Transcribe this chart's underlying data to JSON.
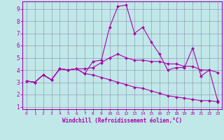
{
  "xlabel": "Windchill (Refroidissement éolien,°C)",
  "xlim": [
    -0.5,
    23.5
  ],
  "ylim": [
    0.8,
    9.6
  ],
  "xticks": [
    0,
    1,
    2,
    3,
    4,
    5,
    6,
    7,
    8,
    9,
    10,
    11,
    12,
    13,
    14,
    15,
    16,
    17,
    18,
    19,
    20,
    21,
    22,
    23
  ],
  "yticks": [
    1,
    2,
    3,
    4,
    5,
    6,
    7,
    8,
    9
  ],
  "bg_color": "#c0e8e8",
  "grid_color": "#9999bb",
  "line_color": "#aa00aa",
  "lines": [
    [
      3.1,
      3.0,
      3.6,
      3.2,
      4.1,
      4.0,
      4.1,
      3.7,
      4.7,
      4.8,
      7.5,
      9.2,
      9.3,
      7.0,
      7.5,
      6.3,
      5.3,
      4.0,
      4.2,
      4.2,
      5.8,
      3.5,
      4.0,
      1.5
    ],
    [
      3.1,
      3.0,
      3.6,
      3.2,
      4.1,
      4.0,
      4.1,
      4.1,
      4.2,
      4.6,
      5.0,
      5.3,
      5.0,
      4.8,
      4.8,
      4.7,
      4.7,
      4.5,
      4.5,
      4.3,
      4.3,
      4.0,
      4.0,
      3.8
    ],
    [
      3.1,
      3.0,
      3.6,
      3.2,
      4.1,
      4.0,
      4.1,
      3.7,
      3.6,
      3.4,
      3.2,
      3.0,
      2.8,
      2.6,
      2.5,
      2.3,
      2.1,
      1.9,
      1.8,
      1.7,
      1.6,
      1.5,
      1.5,
      1.4
    ]
  ]
}
